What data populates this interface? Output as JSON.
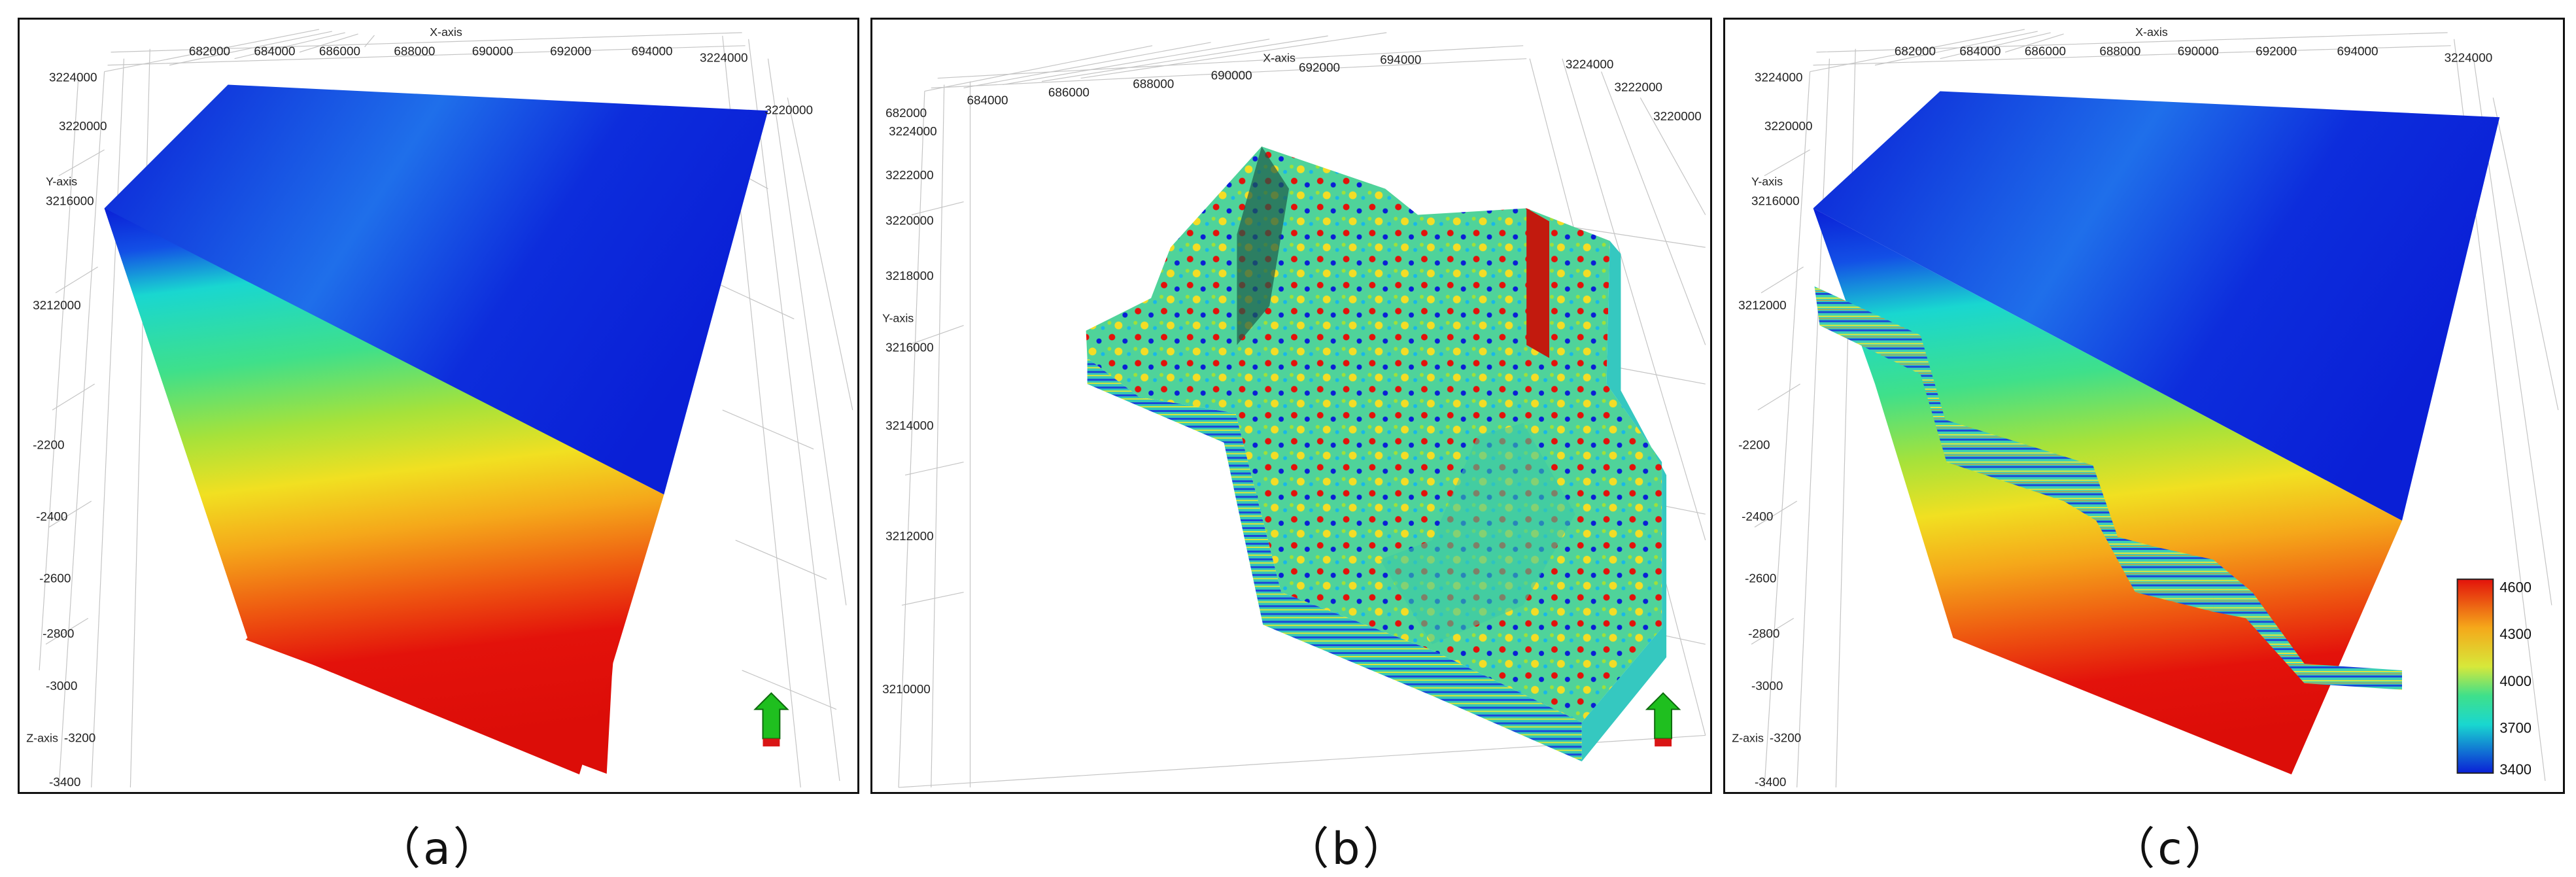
{
  "panels": [
    {
      "id": "a",
      "caption": "（a）",
      "axes": {
        "x_label": "X-axis",
        "y_label": "Y-axis",
        "z_label": "Z-axis",
        "x_ticks": [
          "682000",
          "684000",
          "686000",
          "688000",
          "690000",
          "692000",
          "694000"
        ],
        "y_ticks_left": [
          "3224000",
          "3220000",
          "3216000",
          "3212000"
        ],
        "y_ticks_right": [
          "3224000",
          "3220000"
        ],
        "z_ticks": [
          "-2200",
          "-2400",
          "-2600",
          "-2800",
          "-3000",
          "-3200",
          "-3400"
        ]
      },
      "content": "full velocity model block",
      "north_arrow": true
    },
    {
      "id": "b",
      "caption": "（b）",
      "axes": {
        "x_label": "X-axis",
        "y_label": "Y-axis",
        "x_ticks": [
          "682000",
          "684000",
          "686000",
          "688000",
          "690000",
          "692000",
          "694000"
        ],
        "y_ticks_left": [
          "3224000",
          "3222000",
          "3220000",
          "3218000",
          "3216000",
          "3214000",
          "3212000",
          "3210000"
        ],
        "y_ticks_right": [
          "3224000",
          "3222000",
          "3220000"
        ]
      },
      "content": "extracted faulted seismic attribute body",
      "north_arrow": true
    },
    {
      "id": "c",
      "caption": "（c）",
      "axes": {
        "x_label": "X-axis",
        "y_label": "Y-axis",
        "z_label": "Z-axis",
        "x_ticks": [
          "682000",
          "684000",
          "686000",
          "688000",
          "690000",
          "692000",
          "694000"
        ],
        "y_ticks_left": [
          "3224000",
          "3220000",
          "3216000",
          "3212000"
        ],
        "y_ticks_right": [
          "3224000"
        ],
        "z_ticks": [
          "-2200",
          "-2400",
          "-2600",
          "-2800",
          "-3000",
          "-3200",
          "-3400"
        ]
      },
      "content": "velocity model with embedded faulted body",
      "colorbar": {
        "min": 3400,
        "max": 4600,
        "ticks": [
          "4600",
          "4300",
          "4000",
          "3700",
          "3400"
        ]
      }
    }
  ],
  "colors": {
    "low": "#0a1fd6",
    "mid_low": "#19d7d0",
    "mid": "#9fe03a",
    "mid_high": "#f7c81a",
    "high": "#e3120b",
    "grid": "#bdbdbd",
    "arrow_green": "#1fbf1f",
    "arrow_red": "#d91515"
  }
}
